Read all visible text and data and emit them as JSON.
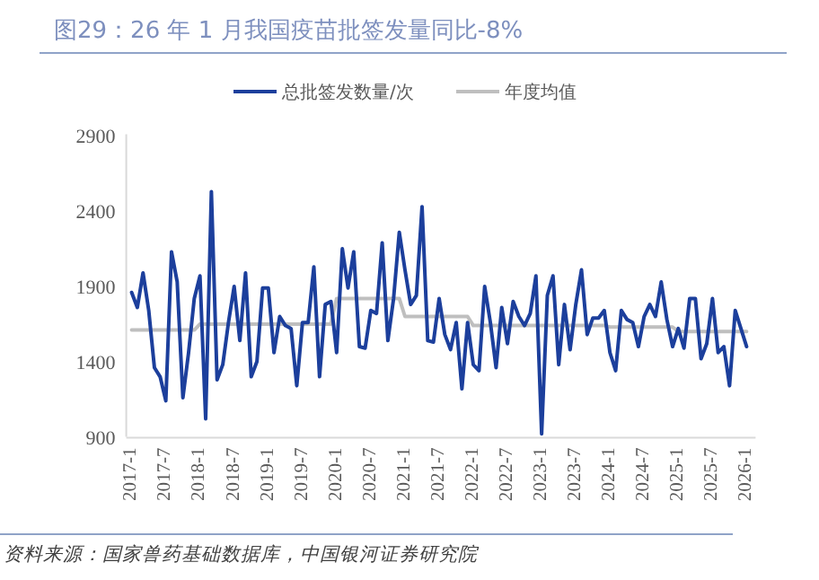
{
  "chart_data": {
    "type": "line",
    "title": "图29：26 年 1 月我国疫苗批签发量同比-8%",
    "categories": [
      "2017-1",
      null,
      null,
      null,
      null,
      null,
      "2017-7",
      null,
      null,
      null,
      null,
      null,
      "2018-1",
      null,
      null,
      null,
      null,
      null,
      "2018-7",
      null,
      null,
      null,
      null,
      null,
      "2019-1",
      null,
      null,
      null,
      null,
      null,
      "2019-7",
      null,
      null,
      null,
      null,
      null,
      "2020-1",
      null,
      null,
      null,
      null,
      null,
      "2020-7",
      null,
      null,
      null,
      null,
      null,
      "2021-1",
      null,
      null,
      null,
      null,
      null,
      "2021-7",
      null,
      null,
      null,
      null,
      null,
      "2022-1",
      null,
      null,
      null,
      null,
      null,
      "2022-7",
      null,
      null,
      null,
      null,
      null,
      "2023-1",
      null,
      null,
      null,
      null,
      null,
      "2023-7",
      null,
      null,
      null,
      null,
      null,
      "2024-1",
      null,
      null,
      null,
      null,
      null,
      "2024-7",
      null,
      null,
      null,
      null,
      null,
      "2025-1",
      null,
      null,
      null,
      null,
      null,
      "2025-7",
      null,
      null,
      null,
      null,
      null,
      "2026-1"
    ],
    "series": [
      {
        "name": "总批签发数量/次",
        "color": "#1c3f9c",
        "values": [
          1860,
          1760,
          1990,
          1740,
          1360,
          1300,
          1140,
          2130,
          1930,
          1160,
          1460,
          1820,
          1970,
          1020,
          2530,
          1280,
          1380,
          1660,
          1900,
          1540,
          1990,
          1300,
          1400,
          1890,
          1890,
          1460,
          1700,
          1640,
          1620,
          1240,
          1660,
          1660,
          2030,
          1300,
          1780,
          1800,
          1460,
          2150,
          1890,
          2130,
          1500,
          1490,
          1740,
          1720,
          2190,
          1540,
          1820,
          2260,
          2010,
          1780,
          1840,
          2430,
          1540,
          1530,
          1820,
          1580,
          1480,
          1660,
          1220,
          1660,
          1380,
          1340,
          1900,
          1660,
          1360,
          1760,
          1520,
          1800,
          1700,
          1640,
          1720,
          1970,
          920,
          1840,
          1970,
          1380,
          1780,
          1480,
          1780,
          2010,
          1580,
          1690,
          1690,
          1740,
          1460,
          1340,
          1740,
          1680,
          1660,
          1500,
          1700,
          1780,
          1700,
          1930,
          1680,
          1500,
          1620,
          1490,
          1820,
          1820,
          1420,
          1520,
          1820,
          1460,
          1500,
          1240,
          1740,
          1620,
          1500
        ]
      },
      {
        "name": "年度均值",
        "color": "#bfbfbf",
        "values": [
          1610,
          1610,
          1610,
          1610,
          1610,
          1610,
          1610,
          1610,
          1610,
          1610,
          1610,
          1610,
          1650,
          1650,
          1650,
          1650,
          1650,
          1650,
          1650,
          1650,
          1650,
          1650,
          1650,
          1650,
          1650,
          1650,
          1650,
          1650,
          1650,
          1650,
          1650,
          1650,
          1650,
          1650,
          1650,
          1650,
          1820,
          1820,
          1820,
          1820,
          1820,
          1820,
          1820,
          1820,
          1820,
          1820,
          1820,
          1820,
          1700,
          1700,
          1700,
          1700,
          1700,
          1700,
          1700,
          1700,
          1700,
          1700,
          1700,
          1700,
          1640,
          1640,
          1640,
          1640,
          1640,
          1640,
          1640,
          1640,
          1640,
          1640,
          1640,
          1640,
          1640,
          1640,
          1640,
          1640,
          1640,
          1640,
          1640,
          1640,
          1640,
          1640,
          1640,
          1640,
          1630,
          1630,
          1630,
          1630,
          1630,
          1630,
          1630,
          1630,
          1630,
          1630,
          1630,
          1630,
          1600,
          1600,
          1600,
          1600,
          1600,
          1600,
          1600,
          1600,
          1600,
          1600,
          1600,
          1600,
          1600
        ]
      }
    ],
    "ylim": [
      900,
      2900
    ],
    "yticks": [
      900,
      1400,
      1900,
      2400,
      2900
    ],
    "legend": "top",
    "annotations": [
      "资料来源：国家兽药基础数据库，中国银河证券研究院"
    ]
  }
}
